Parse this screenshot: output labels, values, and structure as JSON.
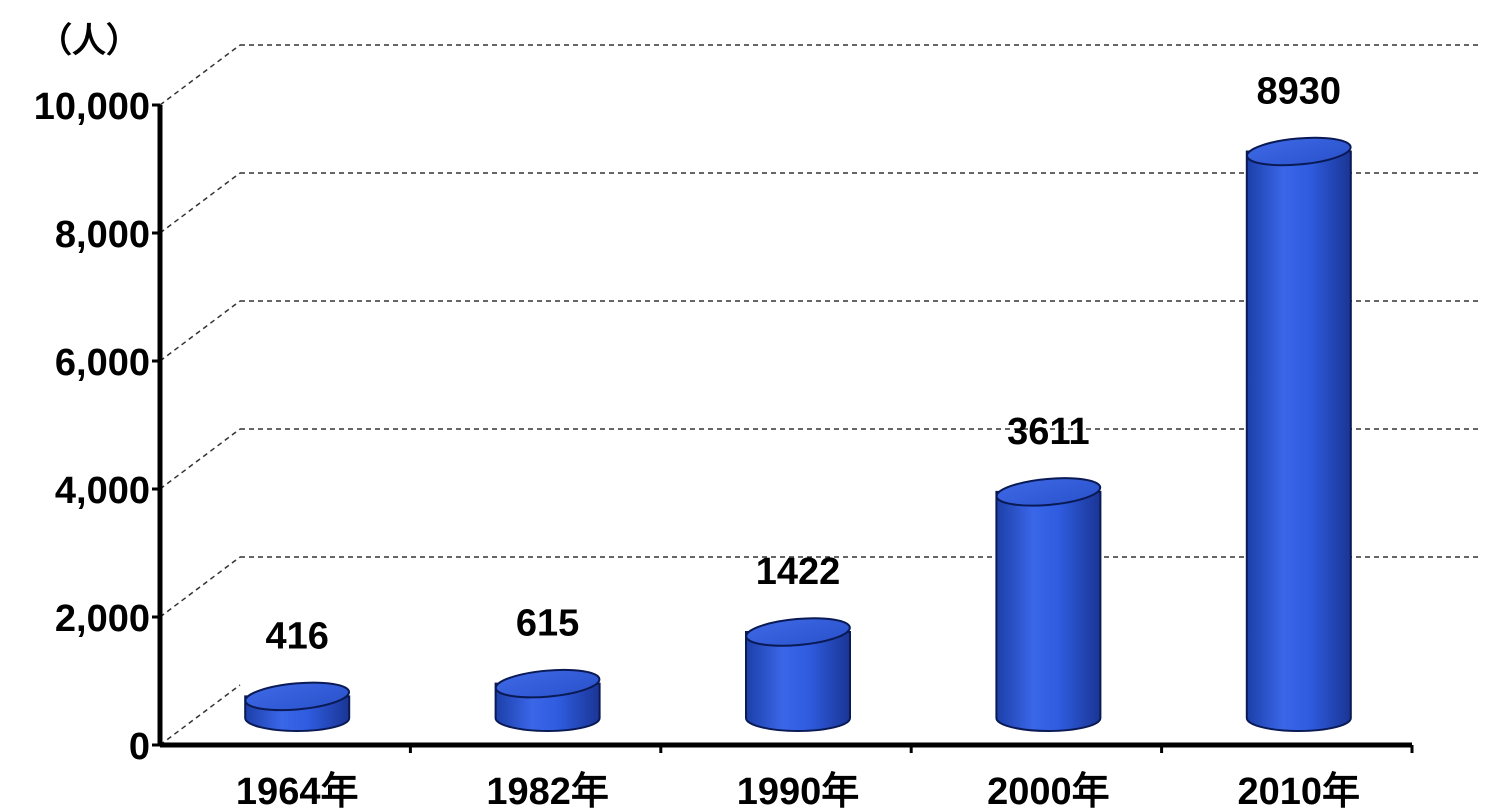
{
  "chart_data": {
    "type": "bar",
    "style": "3d-cylinder",
    "categories": [
      "1964年",
      "1982年",
      "1990年",
      "2000年",
      "2010年"
    ],
    "values": [
      416,
      615,
      1422,
      3611,
      8930
    ],
    "data_labels": [
      "416",
      "615",
      "1422",
      "3611",
      "8930"
    ],
    "ylabel": "（人）",
    "ylim": [
      0,
      10000
    ],
    "yticks": [
      0,
      2000,
      4000,
      6000,
      8000,
      10000
    ],
    "ytick_labels": [
      "0",
      "2,000",
      "4,000",
      "6,000",
      "8,000",
      "10,000"
    ],
    "grid": "dashed-horizontal",
    "colors": {
      "bar_main": "#2F5CE0",
      "bar_dark": "#1C3FA8",
      "bar_light": "#5B83F2",
      "grid": "#333333",
      "axis": "#000000"
    }
  }
}
